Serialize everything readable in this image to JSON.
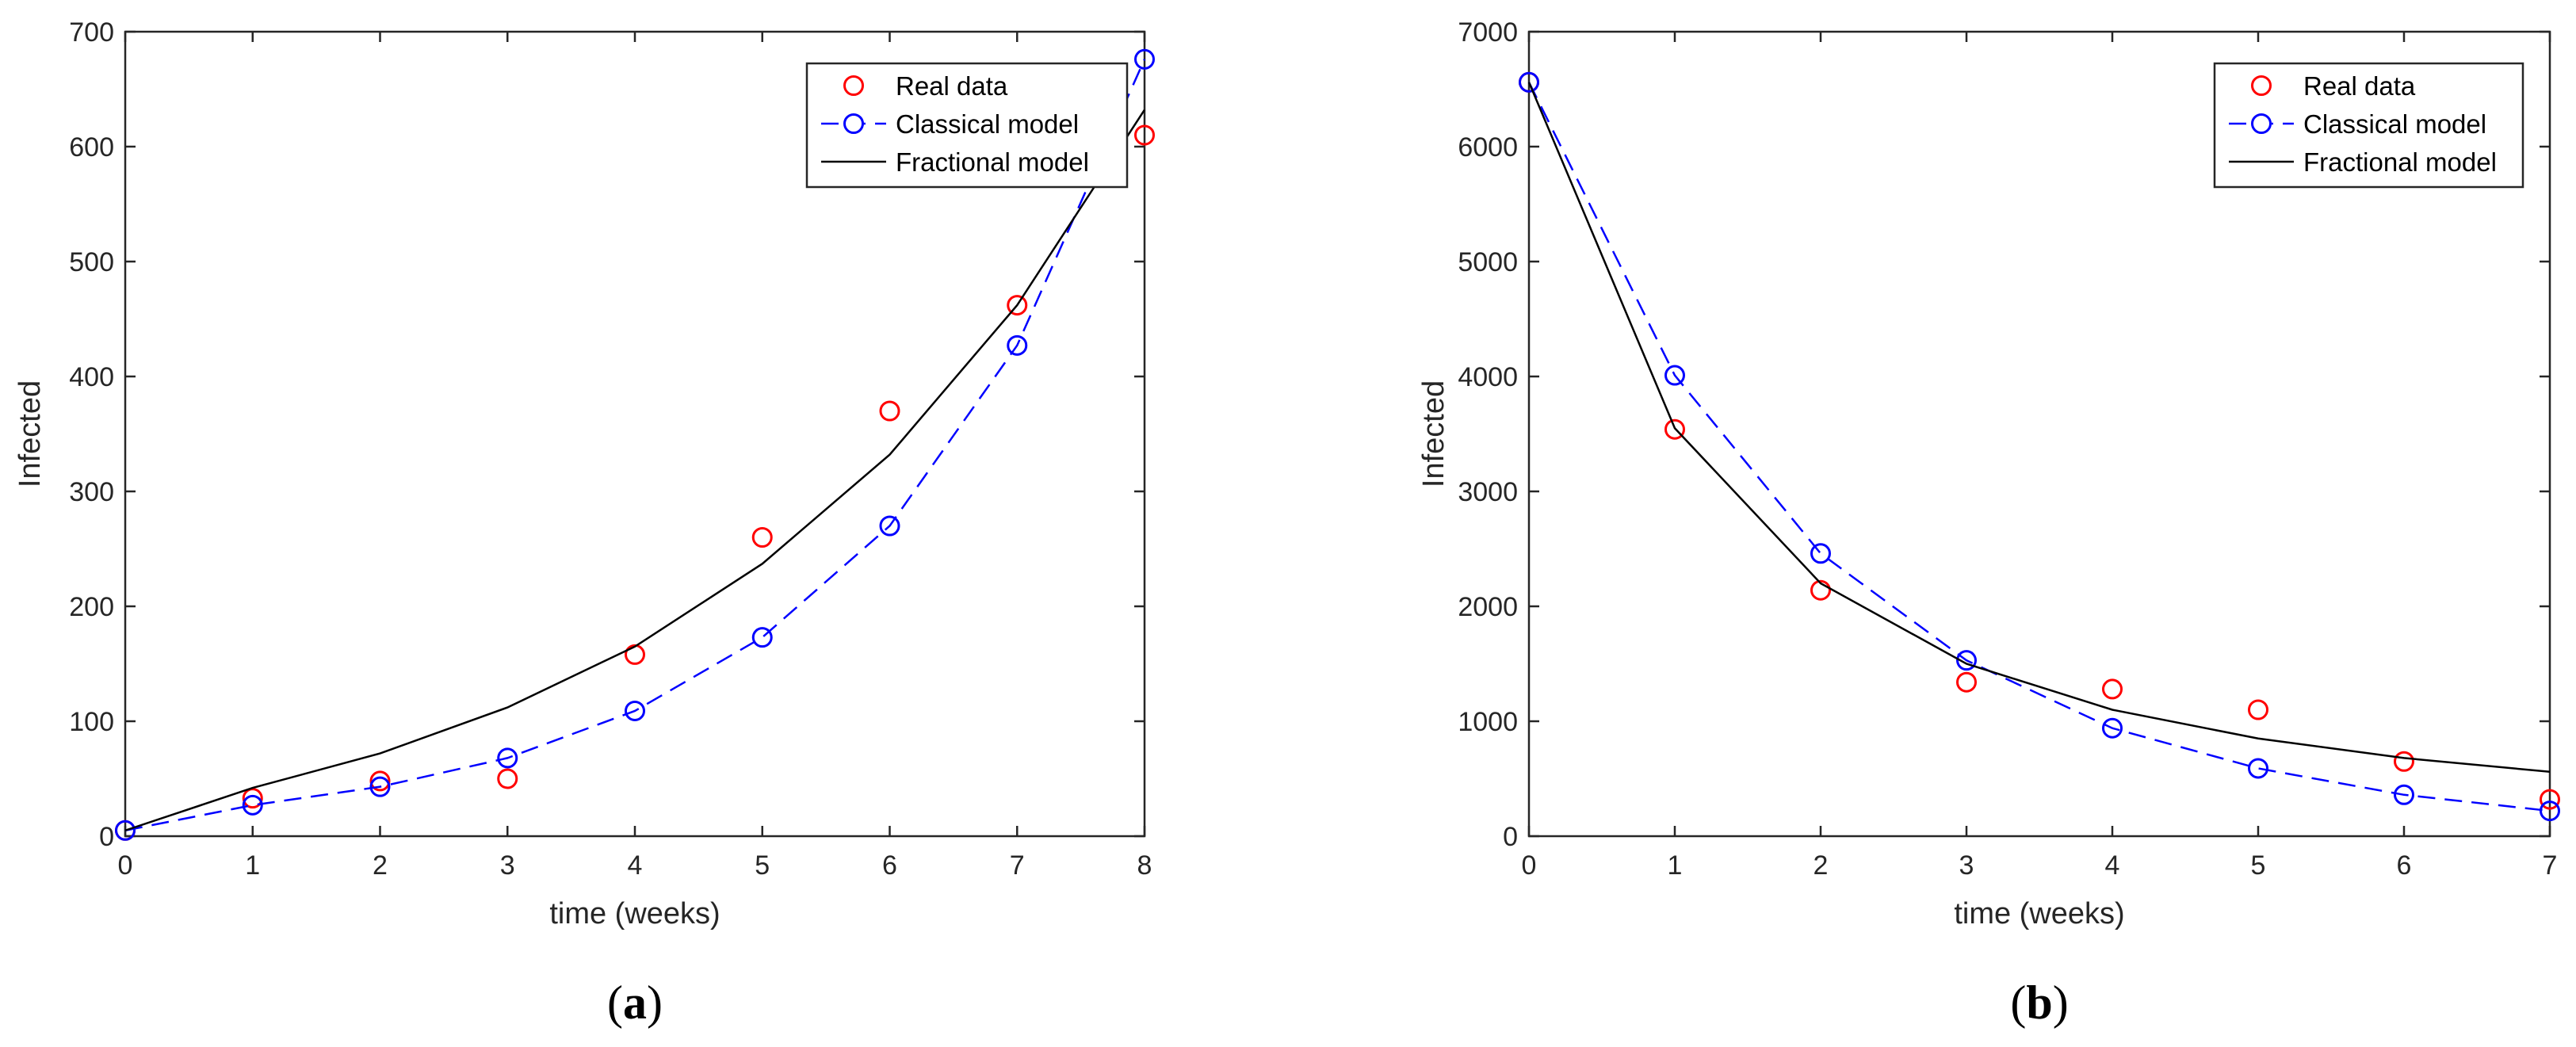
{
  "chart_data": [
    {
      "type": "line",
      "panel_label": "a",
      "xlabel": "time (weeks)",
      "ylabel": "Infected",
      "xlim": [
        0,
        8
      ],
      "ylim": [
        0,
        700
      ],
      "xticks": [
        0,
        1,
        2,
        3,
        4,
        5,
        6,
        7,
        8
      ],
      "yticks": [
        0,
        100,
        200,
        300,
        400,
        500,
        600,
        700
      ],
      "legend_position": "top-right",
      "series": [
        {
          "name": "Real data",
          "style": "markers",
          "color": "#ff0000",
          "x": [
            0,
            1,
            2,
            3,
            4,
            5,
            6,
            7,
            8
          ],
          "y": [
            5,
            33,
            48,
            50,
            158,
            260,
            370,
            462,
            610
          ]
        },
        {
          "name": "Classical model",
          "style": "dashed-markers",
          "color": "#0000ff",
          "x": [
            0,
            1,
            2,
            3,
            4,
            5,
            6,
            7,
            8
          ],
          "y": [
            5,
            27,
            43,
            68,
            109,
            173,
            270,
            427,
            676
          ]
        },
        {
          "name": "Fractional model",
          "style": "solid",
          "color": "#000000",
          "x": [
            0,
            1,
            2,
            3,
            4,
            5,
            6,
            7,
            8
          ],
          "y": [
            5,
            42,
            72,
            112,
            165,
            237,
            332,
            462,
            632
          ]
        }
      ]
    },
    {
      "type": "line",
      "panel_label": "b",
      "xlabel": "time (weeks)",
      "ylabel": "Infected",
      "xlim": [
        0,
        7
      ],
      "ylim": [
        0,
        7000
      ],
      "xticks": [
        0,
        1,
        2,
        3,
        4,
        5,
        6,
        7
      ],
      "yticks": [
        0,
        1000,
        2000,
        3000,
        4000,
        5000,
        6000,
        7000
      ],
      "legend_position": "top-right",
      "series": [
        {
          "name": "Real data",
          "style": "markers",
          "color": "#ff0000",
          "x": [
            0,
            1,
            2,
            3,
            4,
            5,
            6,
            7
          ],
          "y": [
            6560,
            3540,
            2140,
            1340,
            1280,
            1100,
            650,
            320
          ]
        },
        {
          "name": "Classical model",
          "style": "dashed-markers",
          "color": "#0000ff",
          "x": [
            0,
            1,
            2,
            3,
            4,
            5,
            6,
            7
          ],
          "y": [
            6560,
            4010,
            2460,
            1530,
            940,
            590,
            360,
            220
          ]
        },
        {
          "name": "Fractional model",
          "style": "solid",
          "color": "#000000",
          "x": [
            0,
            1,
            2,
            3,
            4,
            5,
            6,
            7
          ],
          "y": [
            6560,
            3550,
            2200,
            1500,
            1100,
            850,
            680,
            560
          ]
        }
      ]
    }
  ]
}
